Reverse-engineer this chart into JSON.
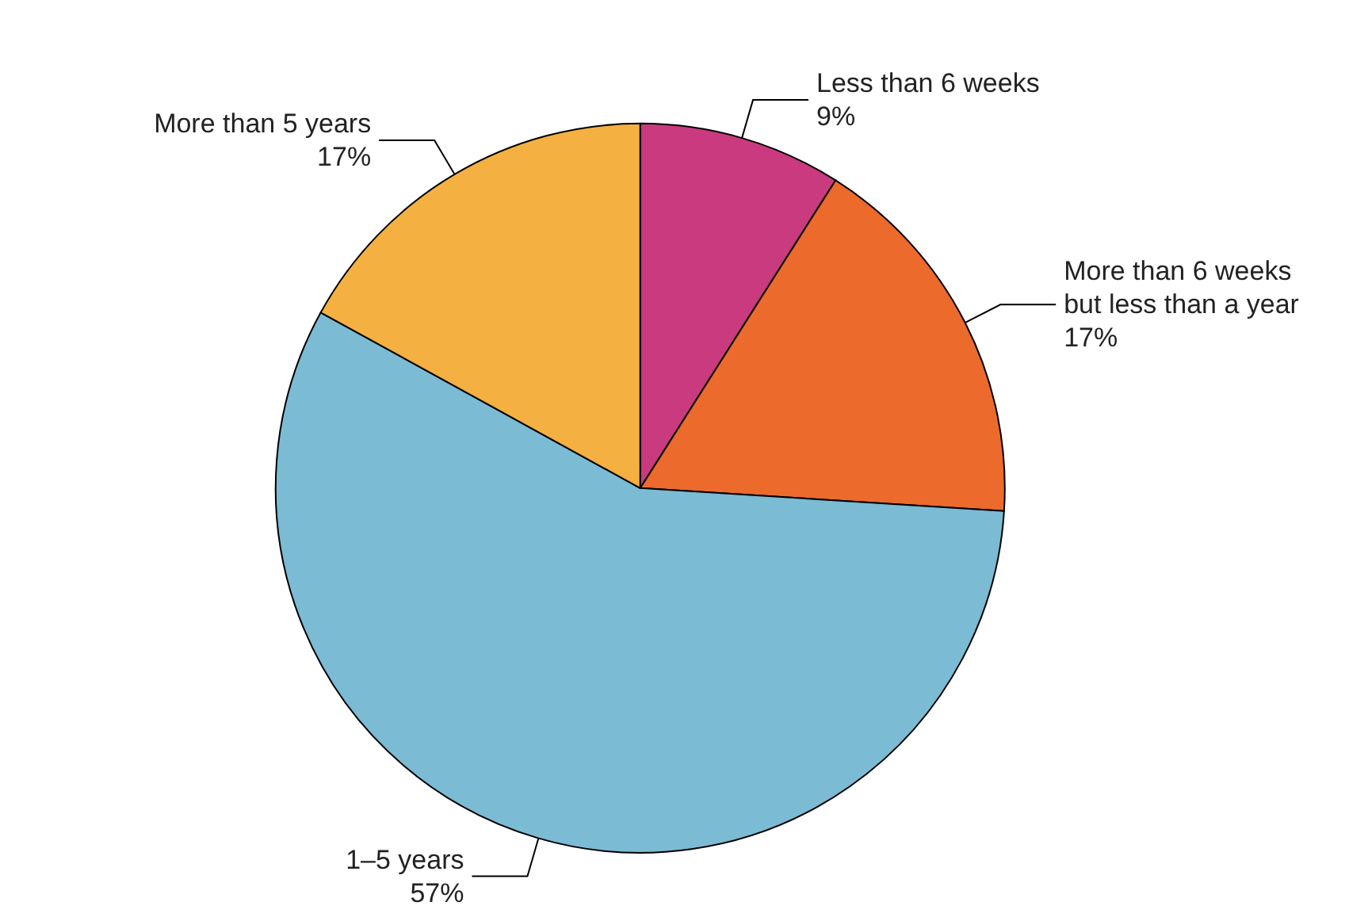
{
  "chart_data": {
    "type": "pie",
    "categories": [
      "Less than 6 weeks",
      "More than 6 weeks but less than a year",
      "1–5 years",
      "More than 5 years"
    ],
    "values": [
      9,
      17,
      57,
      17
    ],
    "colors": [
      "#c93a7f",
      "#ec6a2c",
      "#7bbbd4",
      "#f4b041"
    ],
    "value_labels": [
      "9%",
      "17%",
      "57%",
      "17%"
    ]
  }
}
